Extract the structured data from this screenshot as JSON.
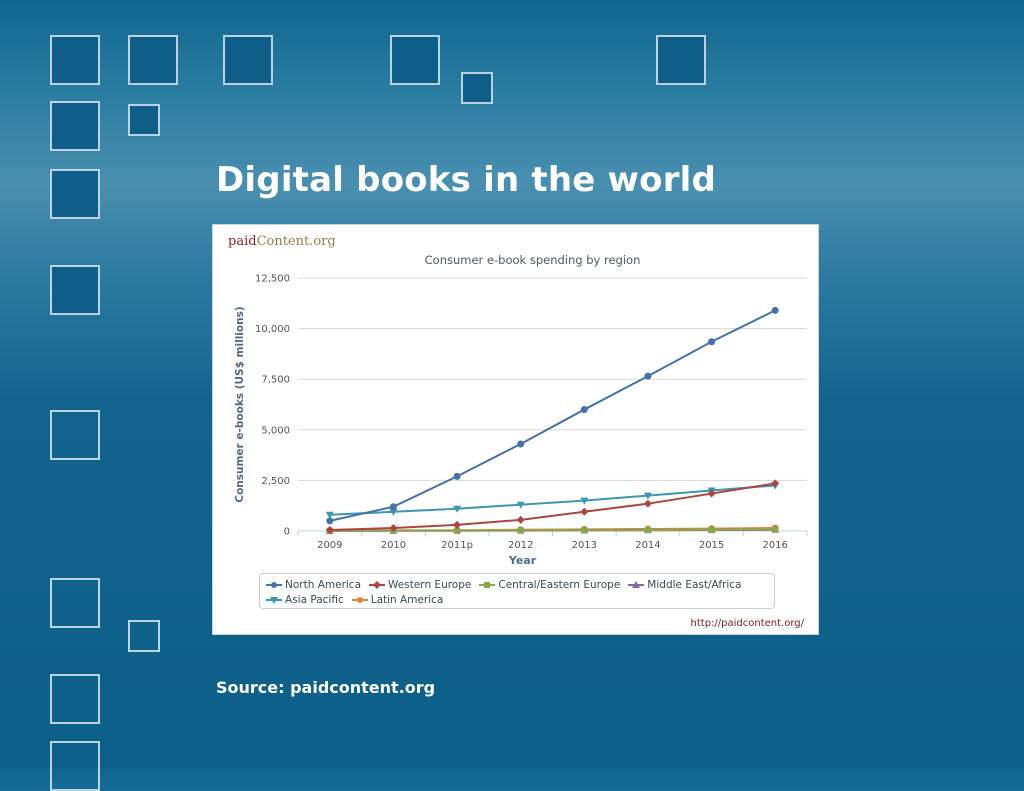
{
  "slide": {
    "title": "Digital books in the world",
    "source": "Source: paidcontent.org"
  },
  "brand": {
    "part1": "paid",
    "part2": "Content.org"
  },
  "source_url": "http://paidcontent.org/",
  "chart_data": {
    "type": "line",
    "title": "Consumer e-book spending by region",
    "xlabel": "Year",
    "ylabel": "Consumer e-books (US$ millions)",
    "categories": [
      "2009",
      "2010",
      "2011p",
      "2012",
      "2013",
      "2014",
      "2015",
      "2016"
    ],
    "ylim": [
      0,
      12500
    ],
    "yticks": [
      0,
      2500,
      5000,
      7500,
      10000,
      12500
    ],
    "ytick_labels": [
      "0",
      "2,500",
      "5,000",
      "7,500",
      "10,000",
      "12,500"
    ],
    "grid": true,
    "legend_position": "bottom",
    "series": [
      {
        "name": "North America",
        "color": "#4572a7",
        "marker": "circle",
        "values": [
          500,
          1200,
          2700,
          4300,
          6000,
          7650,
          9350,
          10900
        ]
      },
      {
        "name": "Western Europe",
        "color": "#aa4643",
        "marker": "diamond",
        "values": [
          50,
          150,
          300,
          550,
          950,
          1350,
          1850,
          2350
        ]
      },
      {
        "name": "Central/Eastern Europe",
        "color": "#89a54e",
        "marker": "square",
        "values": [
          10,
          15,
          20,
          30,
          40,
          50,
          60,
          80
        ]
      },
      {
        "name": "Middle East/Africa",
        "color": "#80699b",
        "marker": "triangle",
        "values": [
          5,
          10,
          15,
          20,
          30,
          40,
          50,
          60
        ]
      },
      {
        "name": "Asia Pacific",
        "color": "#3d96ae",
        "marker": "triangle-down",
        "values": [
          800,
          950,
          1100,
          1300,
          1500,
          1750,
          2000,
          2250
        ]
      },
      {
        "name": "Latin America",
        "color": "#db843d",
        "marker": "circle",
        "values": [
          20,
          30,
          40,
          60,
          80,
          100,
          120,
          150
        ]
      }
    ]
  }
}
